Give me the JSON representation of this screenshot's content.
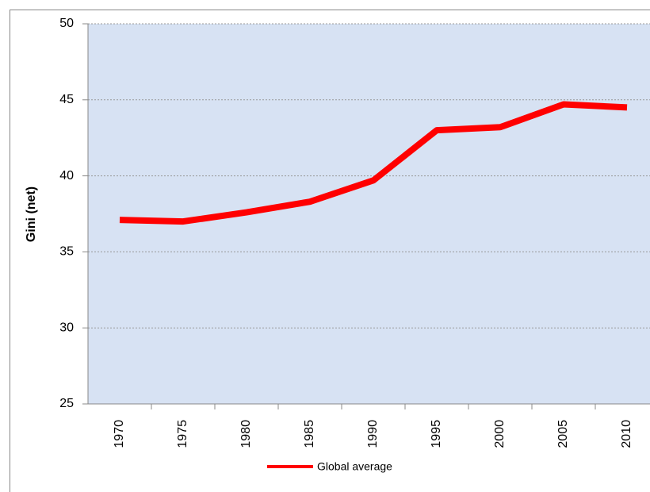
{
  "chart_data": {
    "type": "line",
    "y_label": "Gini (net)",
    "categories": [
      "1970",
      "1975",
      "1980",
      "1985",
      "1990",
      "1995",
      "2000",
      "2005",
      "2010"
    ],
    "series": [
      {
        "name": "Global average",
        "color": "#ff0000",
        "values": [
          37.1,
          37.0,
          37.6,
          38.3,
          39.7,
          43.0,
          43.2,
          44.7,
          44.5
        ]
      }
    ],
    "ylim": [
      25,
      50
    ],
    "yticks": [
      25,
      30,
      35,
      40,
      45,
      50
    ],
    "grid": true,
    "legend": "bottom"
  }
}
